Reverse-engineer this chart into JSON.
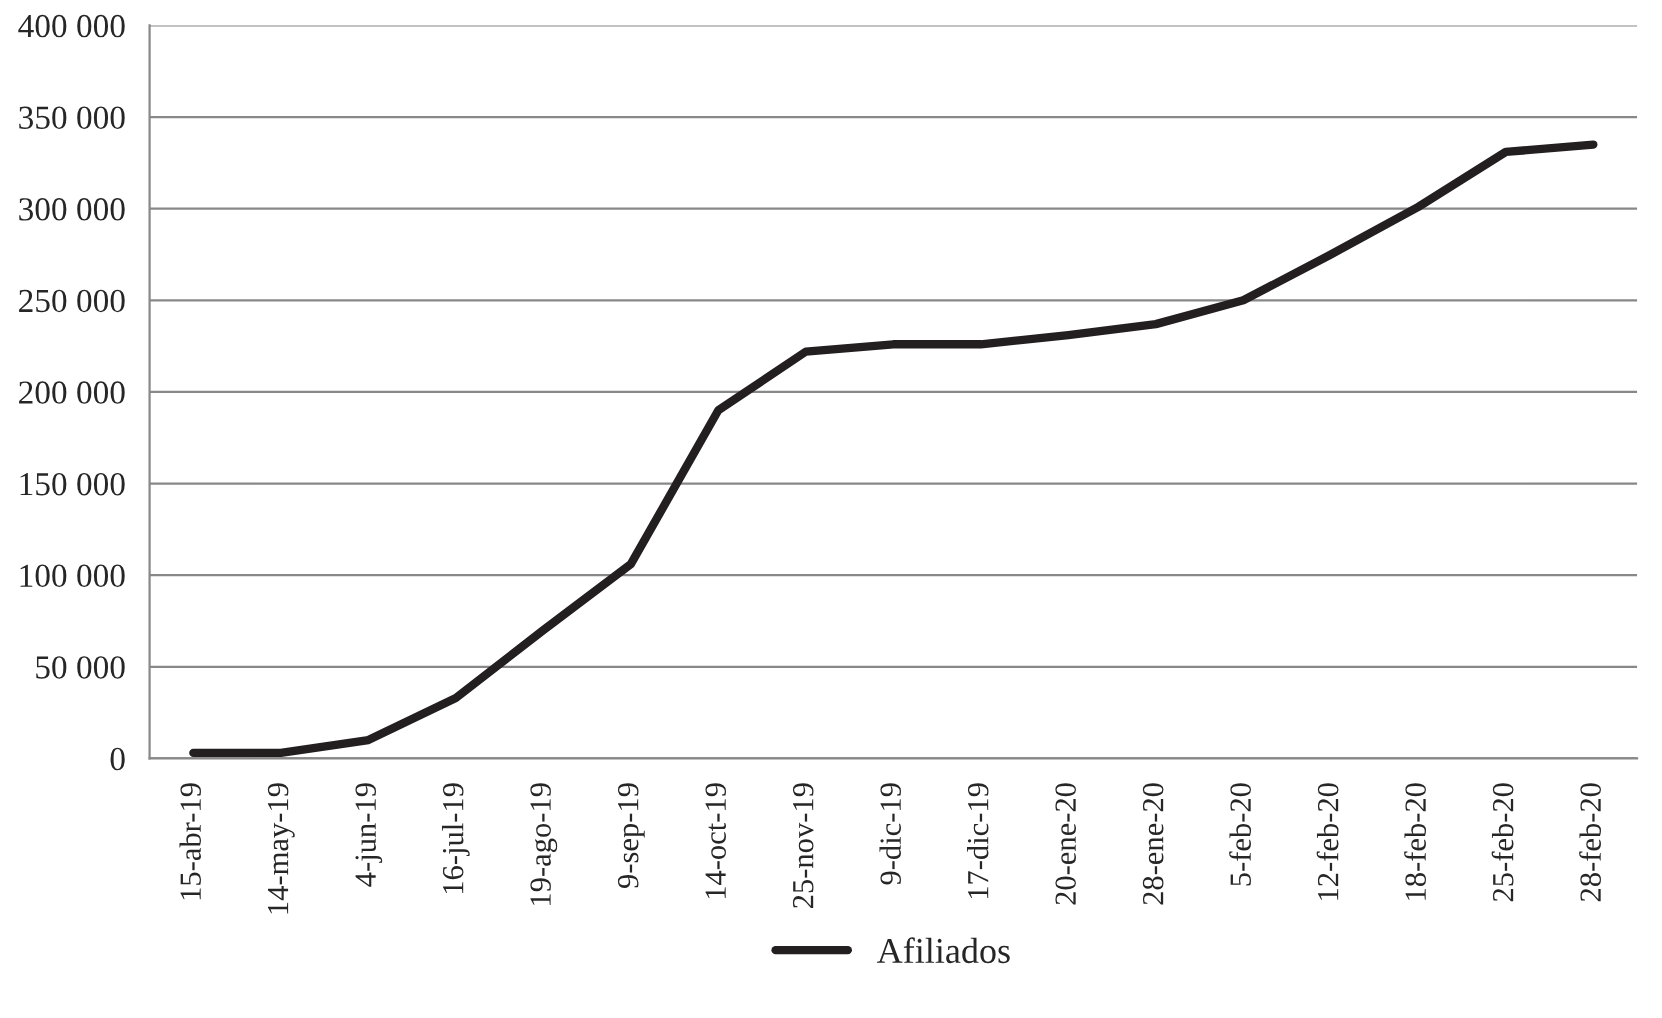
{
  "chart_data": {
    "type": "line",
    "categories": [
      "15-abr-19",
      "14-may-19",
      "4-jun-19",
      "16-jul-19",
      "19-ago-19",
      "9-sep-19",
      "14-oct-19",
      "25-nov-19",
      "9-dic-19",
      "17-dic-19",
      "20-ene-20",
      "28-ene-20",
      "5-feb-20",
      "12-feb-20",
      "18-feb-20",
      "25-feb-20",
      "28-feb-20"
    ],
    "series": [
      {
        "name": "Afiliados",
        "color": "#231f20",
        "values": [
          3000,
          3000,
          10000,
          33000,
          70000,
          106000,
          190000,
          222000,
          226000,
          226000,
          231000,
          237000,
          250000,
          275000,
          301000,
          331000,
          335000
        ]
      }
    ],
    "ylim": [
      0,
      400000
    ],
    "yticks": [
      {
        "value": 0,
        "label": "0"
      },
      {
        "value": 50000,
        "label": "50 000"
      },
      {
        "value": 100000,
        "label": "100 000"
      },
      {
        "value": 150000,
        "label": "150 000"
      },
      {
        "value": 200000,
        "label": "200 000"
      },
      {
        "value": 250000,
        "label": "250 000"
      },
      {
        "value": 300000,
        "label": "300 000"
      },
      {
        "value": 350000,
        "label": "350 000"
      },
      {
        "value": 400000,
        "label": "400 000"
      }
    ],
    "grid": "y",
    "legend": "bottom",
    "marker": "none",
    "line_style": "solid"
  }
}
